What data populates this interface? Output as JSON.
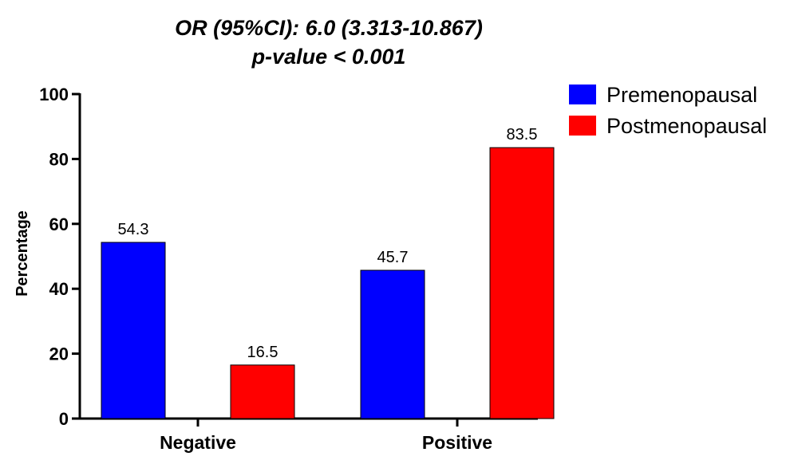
{
  "chart_data": {
    "type": "bar",
    "title_lines": [
      "OR (95%CI): 6.0 (3.313-10.867)",
      "p-value < 0.001"
    ],
    "xlabel": "",
    "ylabel": "Percentage",
    "ylim": [
      0,
      100
    ],
    "yticks": [
      0,
      20,
      40,
      60,
      80,
      100
    ],
    "grid": false,
    "legend_position": "top-right",
    "categories": [
      "Negative",
      "Positive"
    ],
    "series": [
      {
        "name": "Premenopausal",
        "color": "#0000ff",
        "values": [
          54.3,
          45.7
        ],
        "labels": [
          "54.3",
          "45.7"
        ]
      },
      {
        "name": "Postmenopausal",
        "color": "#ff0000",
        "values": [
          16.5,
          83.5
        ],
        "labels": [
          "16.5",
          "83.5"
        ]
      }
    ]
  }
}
